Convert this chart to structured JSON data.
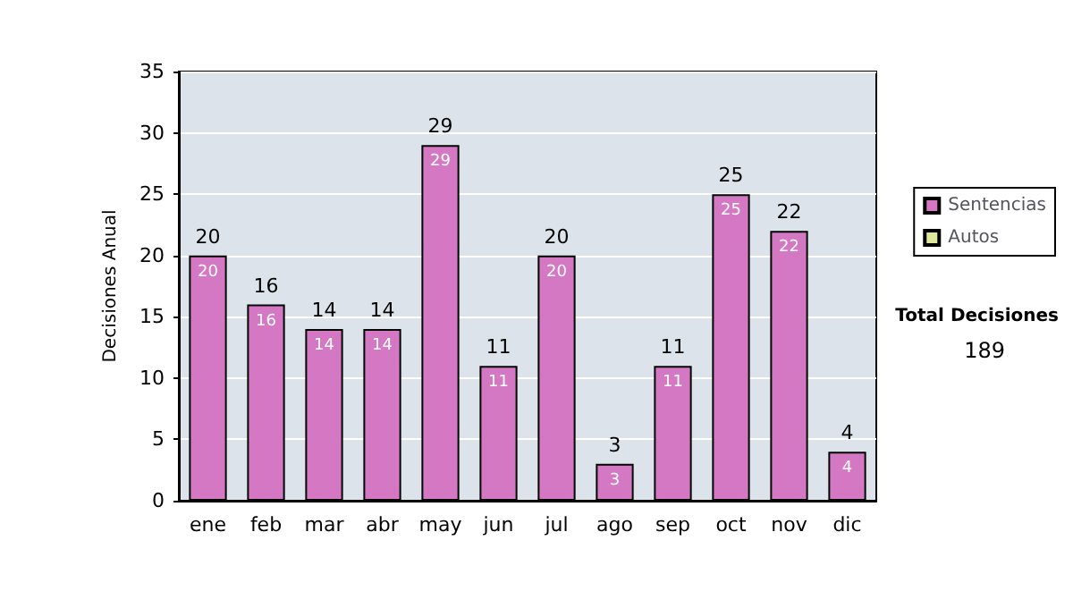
{
  "chart_data": {
    "type": "bar",
    "ylabel": "Decisiones Anual",
    "categories": [
      "ene",
      "feb",
      "mar",
      "abr",
      "may",
      "jun",
      "jul",
      "ago",
      "sep",
      "oct",
      "nov",
      "dic"
    ],
    "series": [
      {
        "name": "Sentencias",
        "color": "#d478c4",
        "values": [
          20,
          16,
          14,
          14,
          29,
          11,
          20,
          3,
          11,
          25,
          22,
          4
        ],
        "value_labels": [
          "20",
          "16",
          "14",
          "14",
          "29",
          "11",
          "20",
          "3",
          "11",
          "25",
          "22",
          "4"
        ]
      },
      {
        "name": "Autos",
        "color": "#e0e89c",
        "values": [
          0,
          0,
          0,
          0,
          0,
          0,
          0,
          0,
          0,
          0,
          0,
          0
        ]
      }
    ],
    "stacked": true,
    "totals": [
      "20",
      "16",
      "14",
      "14",
      "29",
      "11",
      "20",
      "3",
      "11",
      "25",
      "22",
      "4"
    ],
    "ylim": [
      0,
      35
    ],
    "yticks": [
      0,
      5,
      10,
      15,
      20,
      25,
      30,
      35
    ],
    "grid": "y",
    "legend": "right",
    "annotations": [
      "Total Decisiones",
      "189"
    ]
  }
}
